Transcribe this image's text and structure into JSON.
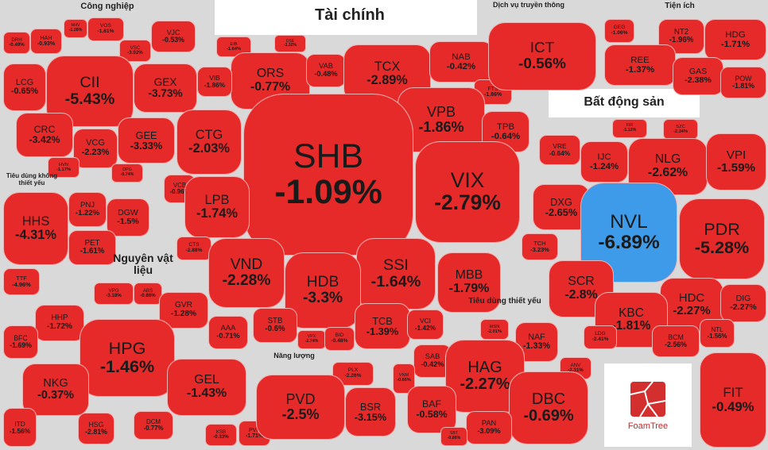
{
  "chart_data": {
    "type": "treemap",
    "color": "#e62a2a",
    "logo": "FoamTree",
    "groups": [
      {
        "name": "Công nghiệp",
        "cells": [
          {
            "name": "DRH",
            "value": -0.49,
            "value_label": "-0.49%"
          },
          {
            "name": "HAH",
            "value": -0.93,
            "value_label": "-0.93%"
          },
          {
            "name": "HHV",
            "value": -1.28,
            "value_label": "-1.28%"
          },
          {
            "name": "VOS",
            "value": -1.61,
            "value_label": "-1.61%"
          },
          {
            "name": "VSC",
            "value": -3.02,
            "value_label": "-3.02%"
          },
          {
            "name": "VJC",
            "value": -0.53,
            "value_label": "-0.53%"
          },
          {
            "name": "LCG",
            "value": -0.65,
            "value_label": "-0.65%"
          },
          {
            "name": "CII",
            "value": -5.43,
            "value_label": "-5.43%"
          },
          {
            "name": "GEX",
            "value": -3.73,
            "value_label": "-3.73%"
          },
          {
            "name": "CRC",
            "value": -3.42,
            "value_label": "-3.42%"
          },
          {
            "name": "VCG",
            "value": -2.23,
            "value_label": "-2.23%"
          },
          {
            "name": "GEE",
            "value": -3.33,
            "value_label": "-3.33%"
          },
          {
            "name": "HVN",
            "value": -1.17,
            "value_label": "-1.17%"
          },
          {
            "name": "DPG",
            "value": -0.74,
            "value_label": "-0.74%"
          }
        ]
      },
      {
        "name": "Tiêu dùng không thiết yếu",
        "cells": [
          {
            "name": "HHS",
            "value": -4.31,
            "value_label": "-4.31%"
          },
          {
            "name": "PNJ",
            "value": -1.22,
            "value_label": "-1.22%"
          },
          {
            "name": "DGW",
            "value": -1.5,
            "value_label": "-1.5%"
          },
          {
            "name": "PET",
            "value": -1.61,
            "value_label": "-1.61%"
          },
          {
            "name": "TTF",
            "value": -4.96,
            "value_label": "-4.96%"
          }
        ]
      },
      {
        "name": "Nguyên vật liệu",
        "cells": [
          {
            "name": "VPG",
            "value": -3.18,
            "value_label": "-3.18%"
          },
          {
            "name": "ABS",
            "value": -0.86,
            "value_label": "-0.86%"
          },
          {
            "name": "HHP",
            "value": -1.72,
            "value_label": "-1.72%"
          },
          {
            "name": "GVR",
            "value": -1.28,
            "value_label": "-1.28%"
          },
          {
            "name": "AAA",
            "value": -0.71,
            "value_label": "-0.71%"
          },
          {
            "name": "BFC",
            "value": -1.69,
            "value_label": "-1.69%"
          },
          {
            "name": "HPG",
            "value": -1.46,
            "value_label": "-1.46%"
          },
          {
            "name": "NKG",
            "value": -0.37,
            "value_label": "-0.37%"
          },
          {
            "name": "GEL",
            "value": -1.43,
            "value_label": "-1.43%"
          },
          {
            "name": "HSG",
            "value": -2.81,
            "value_label": "-2.81%"
          },
          {
            "name": "DCM",
            "value": -0.77,
            "value_label": "-0.77%"
          },
          {
            "name": "ITD",
            "value": -1.56,
            "value_label": "-1.56%"
          },
          {
            "name": "KSB",
            "value": -0.33,
            "value_label": "-0.33%"
          },
          {
            "name": "PVP",
            "value": -1.71,
            "value_label": "-1.71%"
          }
        ]
      },
      {
        "name": "Tài chính",
        "cells": [
          {
            "name": "EIB",
            "value": -1.64,
            "value_label": "-1.64%"
          },
          {
            "name": "DSE",
            "value": -1.32,
            "value_label": "-1.32%"
          },
          {
            "name": "ORS",
            "value": -0.77,
            "value_label": "-0.77%"
          },
          {
            "name": "VAB",
            "value": -0.48,
            "value_label": "-0.48%"
          },
          {
            "name": "TCX",
            "value": -2.89,
            "value_label": "-2.89%"
          },
          {
            "name": "NAB",
            "value": -0.42,
            "value_label": "-0.42%"
          },
          {
            "name": "VIB",
            "value": -1.86,
            "value_label": "-1.86%"
          },
          {
            "name": "FTS",
            "value": -1.86,
            "value_label": "-1.86%"
          },
          {
            "name": "CTG",
            "value": -2.03,
            "value_label": "-2.03%"
          },
          {
            "name": "VPB",
            "value": -1.86,
            "value_label": "-1.86%"
          },
          {
            "name": "TPB",
            "value": -0.64,
            "value_label": "-0.64%"
          },
          {
            "name": "SHB",
            "value": -1.09,
            "value_label": "-1.09%"
          },
          {
            "name": "VCB",
            "value": -0.96,
            "value_label": "-0.96%"
          },
          {
            "name": "VIX",
            "value": -2.79,
            "value_label": "-2.79%"
          },
          {
            "name": "LPB",
            "value": -1.74,
            "value_label": "-1.74%"
          },
          {
            "name": "CTS",
            "value": -2.88,
            "value_label": "-2.88%"
          },
          {
            "name": "VND",
            "value": -2.28,
            "value_label": "-2.28%"
          },
          {
            "name": "SSI",
            "value": -1.64,
            "value_label": "-1.64%"
          },
          {
            "name": "HDB",
            "value": -3.3,
            "value_label": "-3.3%"
          },
          {
            "name": "MBB",
            "value": -1.79,
            "value_label": "-1.79%"
          },
          {
            "name": "STB",
            "value": -0.6,
            "value_label": "-0.6%"
          },
          {
            "name": "VPX",
            "value": -2.74,
            "value_label": "-2.74%"
          },
          {
            "name": "BID",
            "value": -0.48,
            "value_label": "-0.48%"
          },
          {
            "name": "TCB",
            "value": -1.39,
            "value_label": "-1.39%"
          },
          {
            "name": "VCI",
            "value": -1.42,
            "value_label": "-1.42%"
          }
        ]
      },
      {
        "name": "Dịch vụ truyền thông",
        "cells": [
          {
            "name": "ICT",
            "value": -0.56,
            "value_label": "-0.56%"
          }
        ]
      },
      {
        "name": "Tiện ích",
        "cells": [
          {
            "name": "GEG",
            "value": -1.06,
            "value_label": "-1.06%"
          },
          {
            "name": "NT2",
            "value": -1.96,
            "value_label": "-1.96%"
          },
          {
            "name": "HDG",
            "value": -1.71,
            "value_label": "-1.71%"
          },
          {
            "name": "REE",
            "value": -1.37,
            "value_label": "-1.37%"
          },
          {
            "name": "GAS",
            "value": -2.38,
            "value_label": "-2.38%"
          },
          {
            "name": "POW",
            "value": -1.81,
            "value_label": "-1.81%"
          }
        ]
      },
      {
        "name": "Bất động sản",
        "cells": [
          {
            "name": "FIR",
            "value": -1.12,
            "value_label": "-1.12%"
          },
          {
            "name": "SZC",
            "value": -2.34,
            "value_label": "-2.34%"
          },
          {
            "name": "VRE",
            "value": -0.64,
            "value_label": "-0.64%"
          },
          {
            "name": "IJC",
            "value": -1.24,
            "value_label": "-1.24%"
          },
          {
            "name": "NLG",
            "value": -2.62,
            "value_label": "-2.62%"
          },
          {
            "name": "VPI",
            "value": -1.59,
            "value_label": "-1.59%"
          },
          {
            "name": "DXG",
            "value": -2.65,
            "value_label": "-2.65%"
          },
          {
            "name": "NVL",
            "value": -6.89,
            "value_label": "-6.89%",
            "color": "#3d9be9"
          },
          {
            "name": "PDR",
            "value": -5.28,
            "value_label": "-5.28%"
          },
          {
            "name": "TCH",
            "value": -3.23,
            "value_label": "-3.23%"
          },
          {
            "name": "SCR",
            "value": -2.8,
            "value_label": "-2.8%"
          },
          {
            "name": "HDC",
            "value": -2.27,
            "value_label": "-2.27%"
          },
          {
            "name": "DIG",
            "value": -2.27,
            "value_label": "-2.27%"
          },
          {
            "name": "KBC",
            "value": -1.81,
            "value_label": "-1.81%"
          },
          {
            "name": "BCM",
            "value": -2.56,
            "value_label": "-2.56%"
          },
          {
            "name": "NTL",
            "value": -1.56,
            "value_label": "-1.56%"
          },
          {
            "name": "LDG",
            "value": -2.41,
            "value_label": "-2.41%"
          }
        ]
      },
      {
        "name": "Tiêu dùng thiết yếu",
        "cells": [
          {
            "name": "MSN",
            "value": -2.01,
            "value_label": "-2.01%"
          },
          {
            "name": "NAF",
            "value": -1.33,
            "value_label": "-1.33%"
          },
          {
            "name": "SAB",
            "value": -0.42,
            "value_label": "-0.42%"
          },
          {
            "name": "HAG",
            "value": -2.27,
            "value_label": "-2.27%"
          },
          {
            "name": "ANV",
            "value": -2.31,
            "value_label": "-2.31%"
          },
          {
            "name": "VNM",
            "value": -0.66,
            "value_label": "-0.66%"
          },
          {
            "name": "BAF",
            "value": -0.58,
            "value_label": "-0.58%"
          },
          {
            "name": "DBC",
            "value": -0.69,
            "value_label": "-0.69%"
          },
          {
            "name": "PAN",
            "value": -3.09,
            "value_label": "-3.09%"
          },
          {
            "name": "SBT",
            "value": -0.86,
            "value_label": "-0.86%"
          }
        ]
      },
      {
        "name": "Năng lượng",
        "cells": [
          {
            "name": "PLX",
            "value": -2.26,
            "value_label": "-2.26%"
          },
          {
            "name": "PVD",
            "value": -2.5,
            "value_label": "-2.5%"
          },
          {
            "name": "BSR",
            "value": -3.15,
            "value_label": "-3.15%"
          }
        ]
      },
      {
        "cells": [
          {
            "name": "FIT",
            "value": -0.49,
            "value_label": "-0.49%"
          }
        ]
      }
    ]
  }
}
